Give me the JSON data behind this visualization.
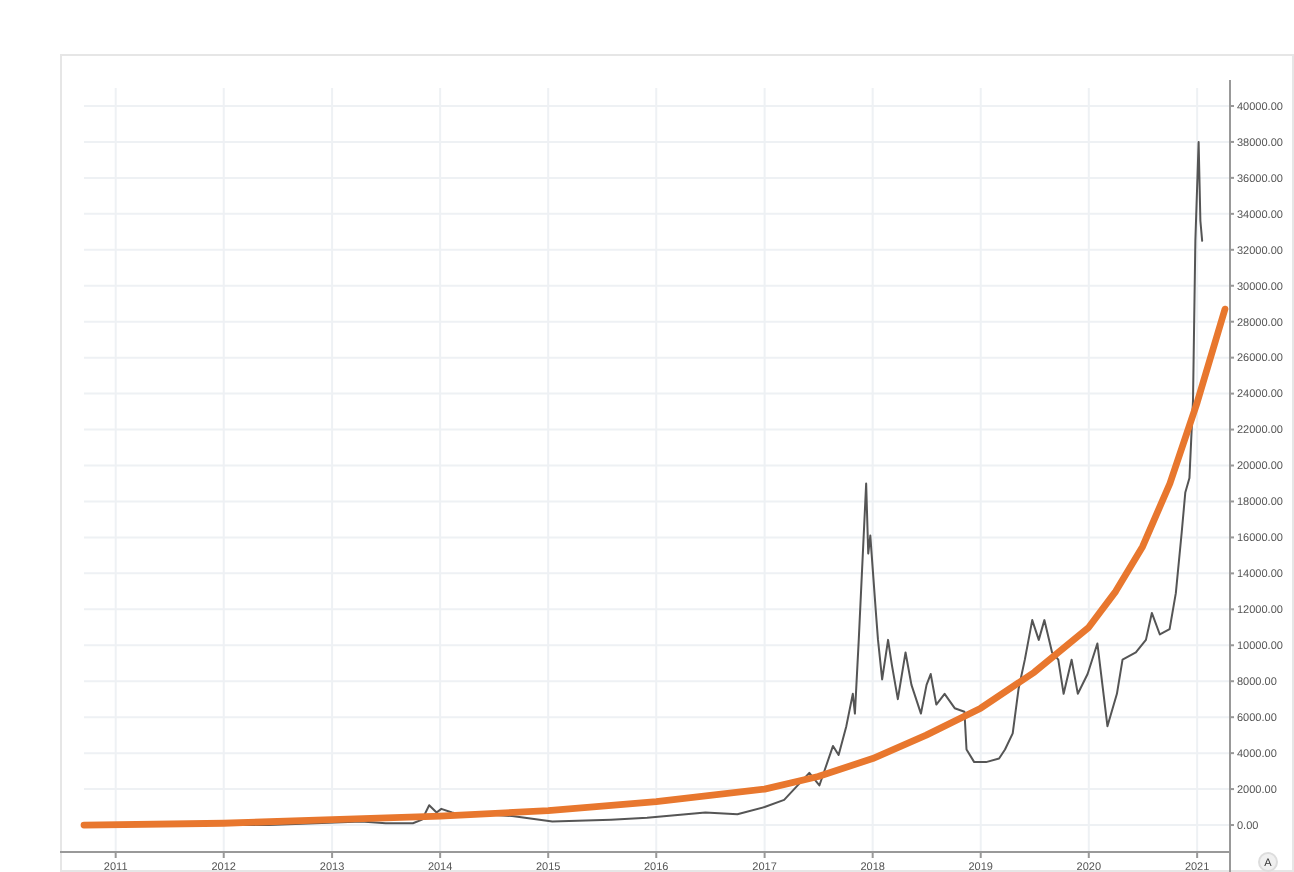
{
  "chart_data": {
    "type": "line",
    "xlim": [
      "2010-09-16",
      "2021-04-22"
    ],
    "xticks": [
      "2011",
      "2012",
      "2013",
      "2014",
      "2015",
      "2016",
      "2017",
      "2018",
      "2019",
      "2020",
      "2021"
    ],
    "ylim": [
      -1500,
      41000
    ],
    "yticks": [
      {
        "value": 0,
        "label": "0.00"
      },
      {
        "value": 2000,
        "label": "2000.00"
      },
      {
        "value": 4000,
        "label": "4000.00"
      },
      {
        "value": 6000,
        "label": "6000.00"
      },
      {
        "value": 8000,
        "label": "8000.00"
      },
      {
        "value": 10000,
        "label": "10000.00"
      },
      {
        "value": 12000,
        "label": "12000.00"
      },
      {
        "value": 14000,
        "label": "14000.00"
      },
      {
        "value": 16000,
        "label": "16000.00"
      },
      {
        "value": 18000,
        "label": "18000.00"
      },
      {
        "value": 20000,
        "label": "20000.00"
      },
      {
        "value": 22000,
        "label": "22000.00"
      },
      {
        "value": 24000,
        "label": "24000.00"
      },
      {
        "value": 26000,
        "label": "26000.00"
      },
      {
        "value": 28000,
        "label": "28000.00"
      },
      {
        "value": 30000,
        "label": "30000.00"
      },
      {
        "value": 32000,
        "label": "32000.00"
      },
      {
        "value": 34000,
        "label": "34000.00"
      },
      {
        "value": 36000,
        "label": "36000.00"
      },
      {
        "value": 38000,
        "label": "38000.00"
      },
      {
        "value": 40000,
        "label": "40000.00"
      }
    ],
    "grid": true,
    "annotations": [
      "A"
    ],
    "series": [
      {
        "color": "#555555",
        "x": [
          "2010-09-16",
          "2011-06-08",
          "2012-06-01",
          "2013-04-10",
          "2013-07-01",
          "2013-10-01",
          "2013-11-01",
          "2013-11-25",
          "2013-12-20",
          "2014-01-05",
          "2014-02-10",
          "2014-04-01",
          "2014-06-01",
          "2014-09-01",
          "2015-01-15",
          "2015-08-01",
          "2015-12-01",
          "2016-06-15",
          "2016-10-01",
          "2017-01-01",
          "2017-03-08",
          "2017-06-01",
          "2017-07-05",
          "2017-08-20",
          "2017-09-08",
          "2017-10-04",
          "2017-10-26",
          "2017-11-02",
          "2017-11-15",
          "2017-12-10",
          "2017-12-17",
          "2017-12-24",
          "2018-01-12",
          "2018-01-19",
          "2018-02-02",
          "2018-02-22",
          "2018-03-07",
          "2018-03-27",
          "2018-04-22",
          "2018-05-12",
          "2018-06-13",
          "2018-07-02",
          "2018-07-16",
          "2018-08-04",
          "2018-09-01",
          "2018-10-05",
          "2018-11-07",
          "2018-11-14",
          "2018-12-10",
          "2019-01-19",
          "2019-03-04",
          "2019-03-24",
          "2019-04-19",
          "2019-05-09",
          "2019-05-30",
          "2019-06-24",
          "2019-07-16",
          "2019-08-04",
          "2019-08-30",
          "2019-09-20",
          "2019-10-08",
          "2019-11-04",
          "2019-11-25",
          "2019-12-28",
          "2020-01-30",
          "2020-03-04",
          "2020-04-05",
          "2020-04-24",
          "2020-06-08",
          "2020-07-12",
          "2020-08-01",
          "2020-08-28",
          "2020-09-30",
          "2020-10-21",
          "2020-11-10",
          "2020-11-22",
          "2020-12-06",
          "2020-12-18",
          "2020-12-26",
          "2021-01-06",
          "2021-01-12",
          "2021-01-18"
        ],
        "values": [
          0,
          0,
          0,
          200,
          100,
          100,
          300,
          1100,
          700,
          900,
          700,
          500,
          600,
          500,
          200,
          300,
          400,
          700,
          600,
          1000,
          1400,
          2900,
          2200,
          4400,
          3900,
          5500,
          7300,
          6200,
          10300,
          19000,
          15100,
          16100,
          11800,
          10300,
          8100,
          10300,
          8900,
          7000,
          9600,
          7800,
          6200,
          7800,
          8400,
          6700,
          7300,
          6500,
          6300,
          4200,
          3500,
          3500,
          3700,
          4200,
          5100,
          7600,
          9200,
          11400,
          10300,
          11400,
          9600,
          9200,
          7300,
          9200,
          7300,
          8400,
          10100,
          5500,
          7300,
          9200,
          9600,
          10300,
          11800,
          10600,
          10900,
          12900,
          16300,
          18500,
          19300,
          23600,
          32500,
          38000,
          33600,
          32500
        ]
      },
      {
        "color": "#e8772e",
        "x": [
          "2010-09-16",
          "2012-01-01",
          "2013-01-01",
          "2014-01-01",
          "2015-01-01",
          "2016-01-01",
          "2017-01-01",
          "2017-07-01",
          "2018-01-01",
          "2018-07-01",
          "2019-01-01",
          "2019-07-01",
          "2020-01-01",
          "2020-04-01",
          "2020-07-01",
          "2020-10-01",
          "2021-01-01",
          "2021-04-05"
        ],
        "values": [
          0,
          100,
          300,
          500,
          800,
          1300,
          2000,
          2700,
          3700,
          5000,
          6500,
          8500,
          11000,
          13000,
          15500,
          19000,
          23500,
          28700
        ]
      }
    ]
  }
}
